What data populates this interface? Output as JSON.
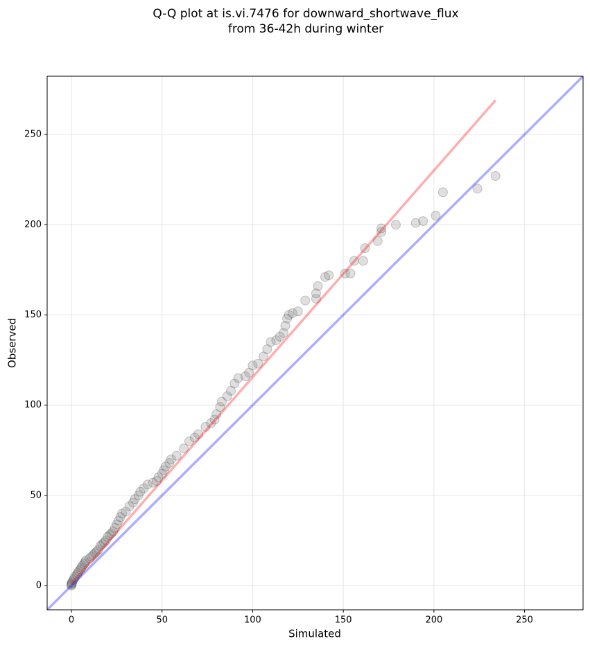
{
  "chart_data": {
    "type": "scatter",
    "title": [
      "Q-Q plot at is.vi.7476 for downward_shortwave_flux",
      "from 36-42h during winter"
    ],
    "xlabel": "Simulated",
    "ylabel": "Observed",
    "xlim": [
      -13.4,
      282.3
    ],
    "ylim": [
      -13.4,
      282.3
    ],
    "xticks": [
      0,
      50,
      100,
      150,
      200,
      250
    ],
    "yticks": [
      0,
      50,
      100,
      150,
      200,
      250
    ],
    "grid": true,
    "series": [
      {
        "color": "#808080",
        "x": [
          0,
          0,
          0,
          0.3,
          0.5,
          1,
          1.5,
          2,
          3,
          3.5,
          4,
          5,
          5.5,
          6,
          7,
          7.5,
          8,
          10,
          11,
          12,
          13,
          14,
          15,
          16,
          17,
          18,
          19,
          20,
          21,
          22,
          23,
          24,
          25,
          26,
          27,
          28,
          30,
          32,
          34,
          35,
          37,
          38,
          40,
          42,
          45,
          47,
          48,
          50,
          51,
          52,
          54,
          55,
          58,
          62,
          65,
          68,
          70,
          74,
          77,
          79,
          80,
          82,
          83,
          86,
          88,
          90,
          92,
          96,
          98,
          100,
          103,
          106,
          108,
          110,
          113,
          115,
          117,
          118,
          119,
          120,
          122,
          125,
          129,
          135,
          135,
          136,
          140,
          142,
          151,
          154,
          156,
          161,
          162,
          169,
          171,
          171,
          179,
          190,
          194,
          201,
          205,
          224,
          234
        ],
        "values": [
          0,
          0.5,
          1,
          1.5,
          2,
          3,
          4,
          5,
          6,
          7,
          8,
          9,
          10,
          11,
          12,
          13,
          14,
          15,
          16,
          17,
          18,
          19,
          20,
          22,
          23,
          24,
          25,
          27,
          28,
          29,
          30,
          32,
          34,
          36,
          38,
          40,
          41,
          44,
          46,
          48,
          50,
          52,
          54,
          56,
          57,
          58,
          60,
          62,
          64,
          66,
          68,
          70,
          72,
          76,
          80,
          82,
          84,
          88,
          90,
          92,
          95,
          99,
          102,
          105,
          108,
          112,
          115,
          116,
          118,
          122,
          123,
          127,
          131,
          135,
          136,
          138,
          140,
          144,
          148,
          150,
          151,
          152,
          158,
          159,
          162,
          166,
          171,
          172,
          173,
          173,
          180,
          180,
          187,
          191,
          196,
          198,
          200,
          201,
          202,
          205,
          218,
          220,
          227
        ]
      }
    ],
    "lines": [
      {
        "color": "#ff0000",
        "x": [
          0,
          234
        ],
        "values": [
          1,
          269
        ]
      },
      {
        "color": "#0000ff",
        "x": [
          -13.4,
          282.3
        ],
        "values": [
          -13.4,
          282.3
        ]
      }
    ]
  }
}
